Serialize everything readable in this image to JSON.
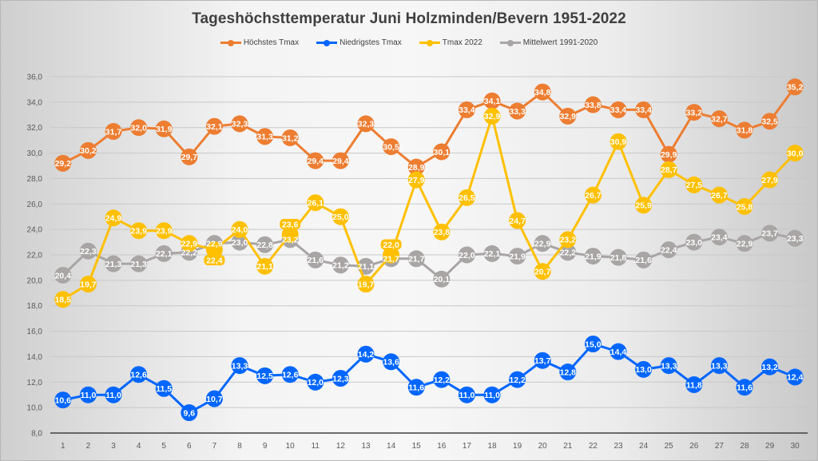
{
  "chart_data": {
    "type": "line",
    "title": "Tageshöchsttemperatur Juni Holzminden/Bevern 1951-2022",
    "xlabel": "",
    "ylabel": "",
    "ylim": [
      8,
      36
    ],
    "yticks": [
      "8,0",
      "10,0",
      "12,0",
      "14,0",
      "16,0",
      "18,0",
      "20,0",
      "22,0",
      "24,0",
      "26,0",
      "28,0",
      "30,0",
      "32,0",
      "34,0",
      "36,0"
    ],
    "ytick_values": [
      8,
      10,
      12,
      14,
      16,
      18,
      20,
      22,
      24,
      26,
      28,
      30,
      32,
      34,
      36
    ],
    "grid": true,
    "legend_position": "top",
    "x": [
      "1",
      "2",
      "3",
      "4",
      "5",
      "6",
      "7",
      "8",
      "9",
      "10",
      "11",
      "12",
      "13",
      "14",
      "15",
      "16",
      "17",
      "18",
      "19",
      "20",
      "21",
      "22",
      "23",
      "24",
      "25",
      "26",
      "27",
      "28",
      "29",
      "30"
    ],
    "series": [
      {
        "name": "Höchstes Tmax",
        "color": "#ed7d31",
        "values": [
          29.2,
          30.2,
          31.7,
          32.0,
          31.9,
          29.7,
          32.1,
          32.3,
          31.3,
          31.2,
          29.4,
          29.4,
          32.3,
          30.5,
          28.9,
          30.1,
          33.4,
          34.1,
          33.3,
          34.8,
          32.9,
          33.8,
          33.4,
          33.4,
          29.9,
          33.2,
          32.7,
          31.8,
          32.5,
          35.2
        ],
        "labels": [
          "29,2",
          "30,2",
          "31,7",
          "32,0",
          "31,9",
          "29,7",
          "32,1",
          "32,3",
          "31,3",
          "31,2",
          "29,4",
          "29,4",
          "32,3",
          "30,5",
          "28,9",
          "30,1",
          "33,4",
          "34,1",
          "33,3",
          "34,8",
          "32,9",
          "33,8",
          "33,4",
          "33,4",
          "29,9",
          "33,2",
          "32,7",
          "31,8",
          "32,5",
          "35,2"
        ]
      },
      {
        "name": "Niedrigstes Tmax",
        "color": "#0066ff",
        "values": [
          10.6,
          11.0,
          11.0,
          12.6,
          11.5,
          9.6,
          10.7,
          13.3,
          12.5,
          12.6,
          12.0,
          12.3,
          14.2,
          13.6,
          11.6,
          12.2,
          11.0,
          11.0,
          12.2,
          13.7,
          12.8,
          15.0,
          14.4,
          13.0,
          13.3,
          11.8,
          13.3,
          11.6,
          13.2,
          12.4
        ],
        "labels": [
          "10,6",
          "11,0",
          "11,0",
          "12,6",
          "11,5",
          "9,6",
          "10,7",
          "13,3",
          "12,5",
          "12,6",
          "12,0",
          "12,3",
          "14,2",
          "13,6",
          "11,6",
          "12,2",
          "11,0",
          "11,0",
          "12,2",
          "13,7",
          "12,8",
          "15,0",
          "14,4",
          "13,0",
          "13,3",
          "11,8",
          "13,3",
          "11,6",
          "13,2",
          "12,4"
        ]
      },
      {
        "name": "Tmax 2022",
        "color": "#ffc000",
        "values": [
          18.5,
          19.7,
          24.9,
          23.9,
          23.9,
          22.9,
          22.4,
          24.0,
          21.1,
          23.6,
          26.1,
          25.0,
          19.7,
          22.0,
          27.9,
          23.8,
          26.5,
          32.9,
          24.7,
          20.7,
          23.2,
          26.7,
          30.9,
          25.9,
          28.7,
          27.5,
          26.7,
          25.8,
          27.9,
          30.0
        ],
        "labels": [
          "18,5",
          "19,7",
          "24,9",
          "23,9",
          "23,9",
          "22,9",
          "22,4",
          "24,0",
          "21,1",
          "23,6",
          "26,1",
          "25,0",
          "19,7",
          "22,0",
          "27,9",
          "23,8",
          "26,5",
          "32,9",
          "24,7",
          "20,7",
          "23,2",
          "26,7",
          "30,9",
          "25,9",
          "28,7",
          "27,5",
          "26,7",
          "25,8",
          "27,9",
          "30,0"
        ]
      },
      {
        "name": "Mittelwert 1991-2020",
        "color": "#a9a5a5",
        "values": [
          20.4,
          22.3,
          21.3,
          21.3,
          22.1,
          22.2,
          22.9,
          23.0,
          22.8,
          23.2,
          21.6,
          21.2,
          21.1,
          21.7,
          21.7,
          20.1,
          22.0,
          22.1,
          21.9,
          22.9,
          22.2,
          21.9,
          21.8,
          21.6,
          22.4,
          23.0,
          23.4,
          22.9,
          23.7,
          23.3
        ],
        "labels": [
          "20,4",
          "22,3",
          "21,3",
          "21,3",
          "22,1",
          "22,2",
          "22,9",
          "23,0",
          "22,8",
          "23,2",
          "21,6",
          "21,2",
          "21,1",
          "21,7",
          "21,7",
          "20,1",
          "22,0",
          "22,1",
          "21,9",
          "22,9",
          "22,2",
          "21,9",
          "21,8",
          "21,6",
          "22,4",
          "23,0",
          "23,4",
          "22,9",
          "23,7",
          "23,3"
        ]
      }
    ]
  }
}
